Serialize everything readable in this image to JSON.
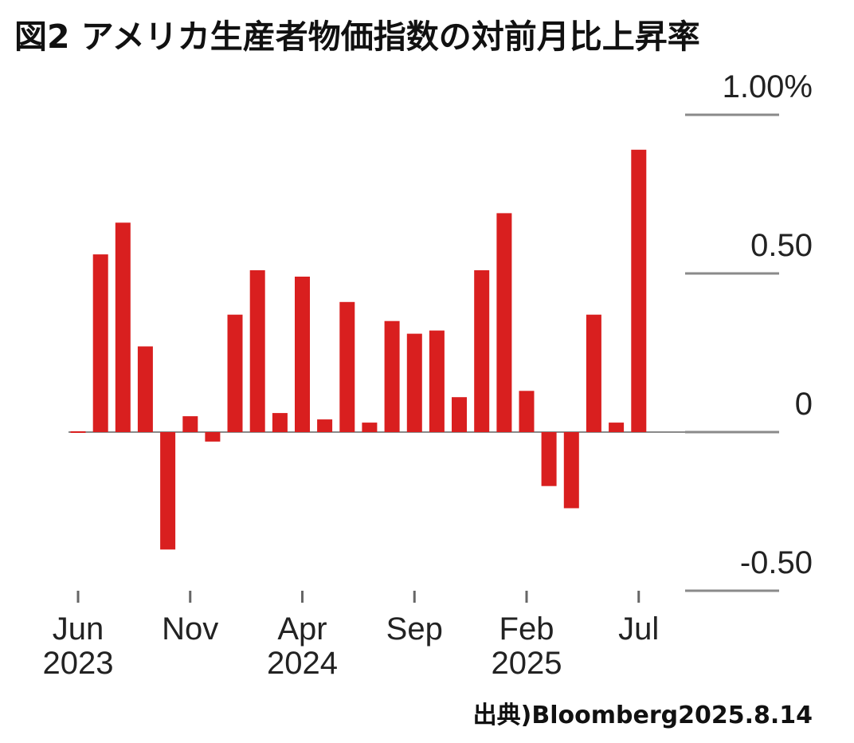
{
  "title": "図2 アメリカ生産者物価指数の対前月比上昇率",
  "source": "出典)Bloomberg2025.8.14",
  "chart_data": {
    "type": "bar",
    "unit": "%",
    "ylim": [
      -0.5,
      1.0
    ],
    "yticks": [
      {
        "value": 1.0,
        "label": "1.00%"
      },
      {
        "value": 0.5,
        "label": "0.50"
      },
      {
        "value": 0.0,
        "label": "0"
      },
      {
        "value": -0.5,
        "label": "-0.50"
      }
    ],
    "xticks": [
      {
        "index": 0,
        "month": "Jun",
        "year": "2023"
      },
      {
        "index": 5,
        "month": "Nov",
        "year": ""
      },
      {
        "index": 10,
        "month": "Apr",
        "year": "2024"
      },
      {
        "index": 15,
        "month": "Sep",
        "year": ""
      },
      {
        "index": 20,
        "month": "Feb",
        "year": "2025"
      },
      {
        "index": 25,
        "month": "Jul",
        "year": ""
      }
    ],
    "bar_color": "#d91f1f",
    "values": [
      0.0,
      0.56,
      0.66,
      0.27,
      -0.37,
      0.05,
      -0.03,
      0.37,
      0.51,
      0.06,
      0.49,
      0.04,
      0.41,
      0.03,
      0.35,
      0.31,
      0.32,
      0.11,
      0.51,
      0.69,
      0.13,
      -0.17,
      -0.24,
      0.37,
      0.03,
      0.89
    ],
    "grid": false,
    "legend": "none"
  }
}
